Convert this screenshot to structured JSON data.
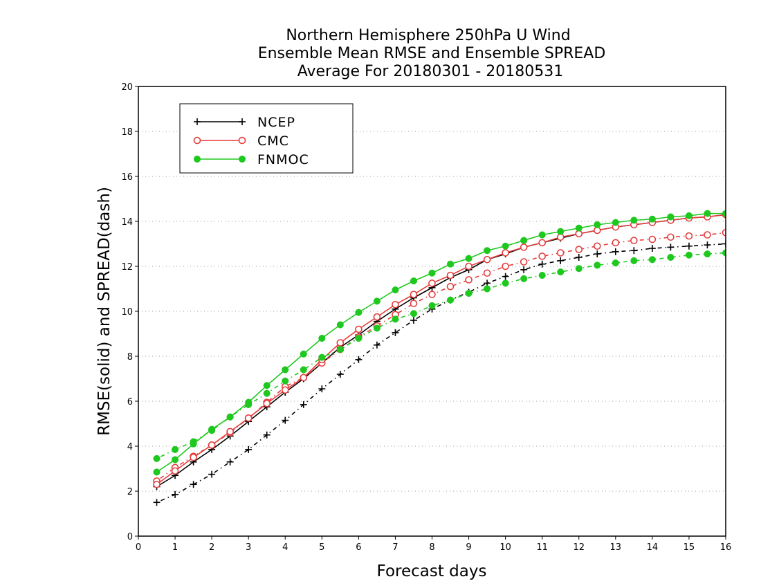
{
  "chart_data": {
    "type": "line",
    "title": [
      "Northern Hemisphere 250hPa U Wind",
      "Ensemble Mean RMSE and Ensemble SPREAD",
      "Average For 20180301 - 20180531"
    ],
    "xlabel": "Forecast days",
    "ylabel": "RMSE(solid) and SPREAD(dash)",
    "xlim": [
      0,
      16
    ],
    "ylim": [
      0,
      20
    ],
    "xticks": [
      0,
      1,
      2,
      3,
      4,
      5,
      6,
      7,
      8,
      9,
      10,
      11,
      12,
      13,
      14,
      15,
      16
    ],
    "yticks": [
      0,
      2,
      4,
      6,
      8,
      10,
      12,
      14,
      16,
      18,
      20
    ],
    "grid": "horizontal dotted",
    "legend_position": "top-left",
    "x": [
      0.5,
      1,
      1.5,
      2,
      2.5,
      3,
      3.5,
      4,
      4.5,
      5,
      5.5,
      6,
      6.5,
      7,
      7.5,
      8,
      8.5,
      9,
      9.5,
      10,
      10.5,
      11,
      11.5,
      12,
      12.5,
      13,
      13.5,
      14,
      14.5,
      15,
      15.5,
      16
    ],
    "series": [
      {
        "name": "NCEP",
        "color": "#000000",
        "marker": "plus",
        "rmse": [
          2.2,
          2.7,
          3.3,
          3.85,
          4.45,
          5.1,
          5.75,
          6.4,
          7.0,
          7.7,
          8.4,
          8.95,
          9.55,
          10.1,
          10.6,
          11.05,
          11.5,
          11.85,
          12.3,
          12.55,
          12.85,
          13.05,
          13.25,
          13.45,
          13.6,
          13.75,
          13.85,
          13.95,
          14.05,
          14.15,
          14.2,
          14.3
        ],
        "spread": [
          1.5,
          1.85,
          2.3,
          2.75,
          3.3,
          3.85,
          4.5,
          5.15,
          5.85,
          6.55,
          7.2,
          7.85,
          8.5,
          9.05,
          9.6,
          10.1,
          10.5,
          10.85,
          11.25,
          11.55,
          11.85,
          12.1,
          12.25,
          12.4,
          12.55,
          12.65,
          12.7,
          12.8,
          12.85,
          12.9,
          12.95,
          13.0
        ]
      },
      {
        "name": "CMC",
        "color": "#e63c3c",
        "marker": "open-circle",
        "rmse": [
          2.3,
          2.9,
          3.5,
          4.05,
          4.65,
          5.25,
          5.9,
          6.5,
          7.05,
          7.85,
          8.6,
          9.2,
          9.75,
          10.3,
          10.75,
          11.25,
          11.6,
          12.0,
          12.3,
          12.6,
          12.85,
          13.05,
          13.3,
          13.45,
          13.6,
          13.75,
          13.85,
          13.95,
          14.05,
          14.15,
          14.2,
          14.3
        ],
        "spread": [
          2.45,
          3.05,
          3.55,
          4.05,
          4.6,
          5.25,
          5.95,
          6.65,
          7.05,
          7.7,
          8.3,
          8.85,
          9.35,
          9.85,
          10.35,
          10.75,
          11.1,
          11.4,
          11.7,
          12.0,
          12.2,
          12.45,
          12.6,
          12.75,
          12.9,
          13.05,
          13.15,
          13.2,
          13.3,
          13.35,
          13.4,
          13.5
        ]
      },
      {
        "name": "FNMOC",
        "color": "#1ec81e",
        "marker": "filled-circle",
        "rmse": [
          2.85,
          3.4,
          4.1,
          4.75,
          5.3,
          5.95,
          6.7,
          7.4,
          8.1,
          8.8,
          9.4,
          9.95,
          10.45,
          10.95,
          11.35,
          11.7,
          12.1,
          12.35,
          12.7,
          12.9,
          13.15,
          13.4,
          13.55,
          13.7,
          13.85,
          13.95,
          14.05,
          14.1,
          14.2,
          14.25,
          14.35,
          14.35
        ],
        "spread": [
          3.45,
          3.85,
          4.2,
          4.7,
          5.3,
          5.85,
          6.35,
          6.9,
          7.4,
          7.95,
          8.3,
          8.8,
          9.25,
          9.65,
          9.9,
          10.25,
          10.5,
          10.8,
          11.0,
          11.25,
          11.45,
          11.6,
          11.75,
          11.9,
          12.05,
          12.15,
          12.25,
          12.3,
          12.4,
          12.5,
          12.55,
          12.6
        ]
      }
    ]
  }
}
